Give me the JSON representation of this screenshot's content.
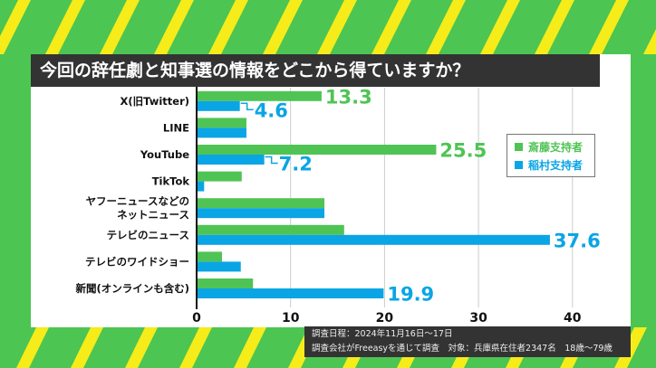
{
  "title": "今回の辞任劇と知事選の情報をどこから得ていますか？",
  "note": {
    "line1": "調査日程：2024年11月16日～17日",
    "line2": "調査会社がFreeasyを通じて調査　対象：兵庫県在住者2347名　18歳～79歳"
  },
  "colors": {
    "background": "#4cc552",
    "stripes": "#f5ec1a",
    "saito": "#4fc454",
    "inamura": "#0aa5e4"
  },
  "chart_data": {
    "type": "bar",
    "orientation": "horizontal",
    "title": "今回の辞任劇と知事選の情報をどこから得ていますか？",
    "categories": [
      "X(旧Twitter)",
      "LINE",
      "YouTube",
      "TikTok",
      "ヤフーニュースなどの\nネットニュース",
      "テレビのニュース",
      "テレビのワイドショー",
      "新聞(オンラインも含む)"
    ],
    "series": [
      {
        "name": "斎藤支持者",
        "color": "#4fc454",
        "values": [
          13.3,
          5.3,
          25.5,
          4.8,
          13.6,
          15.7,
          2.7,
          6.0
        ]
      },
      {
        "name": "稲村支持者",
        "color": "#0aa5e4",
        "values": [
          4.6,
          5.3,
          7.2,
          0.8,
          13.6,
          37.6,
          4.7,
          19.9
        ]
      }
    ],
    "data_labels": [
      {
        "category": "X(旧Twitter)",
        "series": 0,
        "text": "13.3"
      },
      {
        "category": "X(旧Twitter)",
        "series": 1,
        "text": "4.6"
      },
      {
        "category": "YouTube",
        "series": 0,
        "text": "25.5"
      },
      {
        "category": "YouTube",
        "series": 1,
        "text": "7.2"
      },
      {
        "category": "テレビのニュース",
        "series": 1,
        "text": "37.6"
      },
      {
        "category": "新聞(オンラインも含む)",
        "series": 1,
        "text": "19.9"
      }
    ],
    "xlim": [
      0,
      40
    ],
    "xticks": [
      "0",
      "10",
      "20",
      "30",
      "40"
    ],
    "grid": true,
    "legend": "right"
  }
}
